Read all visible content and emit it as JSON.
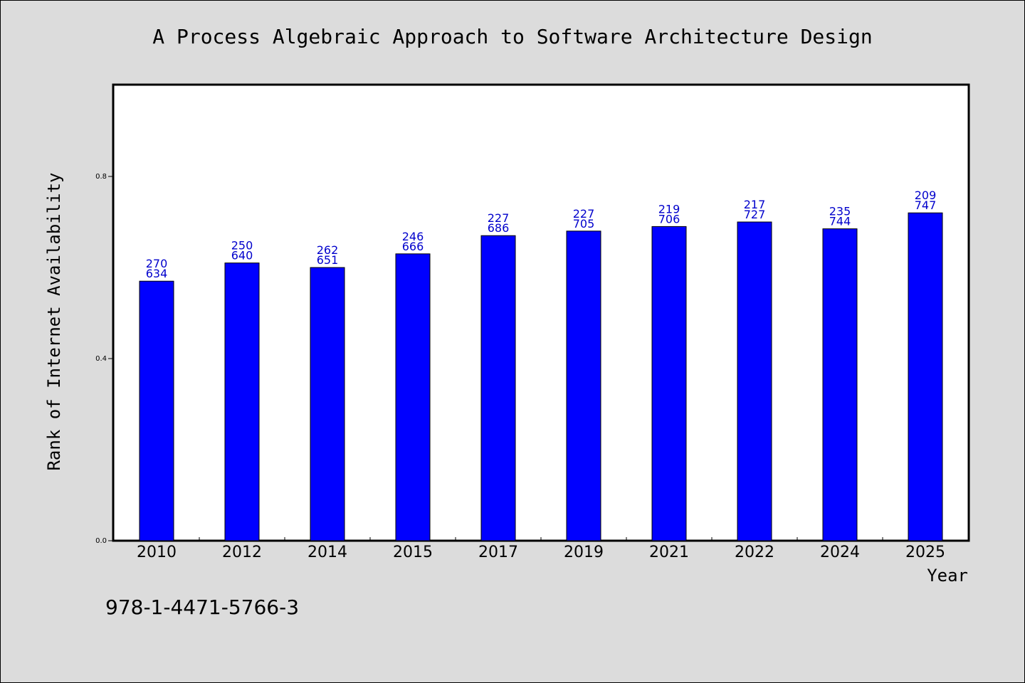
{
  "chart_data": {
    "type": "bar",
    "title": "A Process Algebraic Approach to Software Architecture Design",
    "xlabel": "Year",
    "ylabel": "Rank of Internet Availability",
    "ylim": [
      0,
      1.0
    ],
    "yticks": [
      "0.0",
      "0.4",
      "0.8"
    ],
    "grid": false,
    "bar_color": "#0000ff",
    "label_color": "#0000cc",
    "categories": [
      "2010",
      "2012",
      "2014",
      "2015",
      "2017",
      "2019",
      "2021",
      "2022",
      "2024",
      "2025"
    ],
    "values": [
      0.57,
      0.61,
      0.6,
      0.63,
      0.67,
      0.68,
      0.69,
      0.7,
      0.685,
      0.72
    ],
    "label_top": [
      "270",
      "250",
      "262",
      "246",
      "227",
      "227",
      "219",
      "217",
      "235",
      "209"
    ],
    "label_bottom": [
      "634",
      "640",
      "651",
      "666",
      "686",
      "705",
      "706",
      "727",
      "744",
      "747"
    ]
  },
  "footer": {
    "isbn": "978-1-4471-5766-3"
  }
}
